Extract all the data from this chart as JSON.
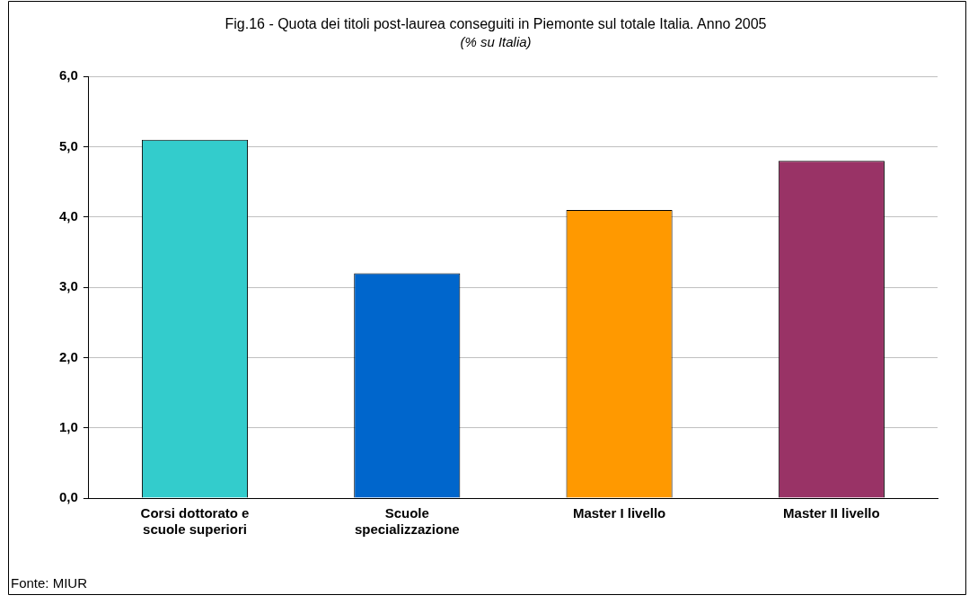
{
  "chart_data": {
    "type": "bar",
    "title": "Fig.16 - Quota dei titoli post-laurea conseguiti in Piemonte sul totale Italia. Anno 2005",
    "subtitle": "(% su Italia)",
    "categories": [
      "Corsi dottorato e scuole superiori",
      "Scuole specializzazione",
      "Master I livello",
      "Master II livello"
    ],
    "values": [
      5.1,
      3.2,
      4.1,
      4.8
    ],
    "colors": [
      "#33cccc",
      "#0066cc",
      "#ff9900",
      "#993366"
    ],
    "ylim": [
      0,
      6
    ],
    "yticks": [
      {
        "value": 0,
        "label": "0,0"
      },
      {
        "value": 1,
        "label": "1,0"
      },
      {
        "value": 2,
        "label": "2,0"
      },
      {
        "value": 3,
        "label": "3,0"
      },
      {
        "value": 4,
        "label": "4,0"
      },
      {
        "value": 5,
        "label": "5,0"
      },
      {
        "value": 6,
        "label": "6,0"
      }
    ],
    "grid": "y",
    "legend": false,
    "annotations": [
      "Fonte: MIUR"
    ]
  }
}
